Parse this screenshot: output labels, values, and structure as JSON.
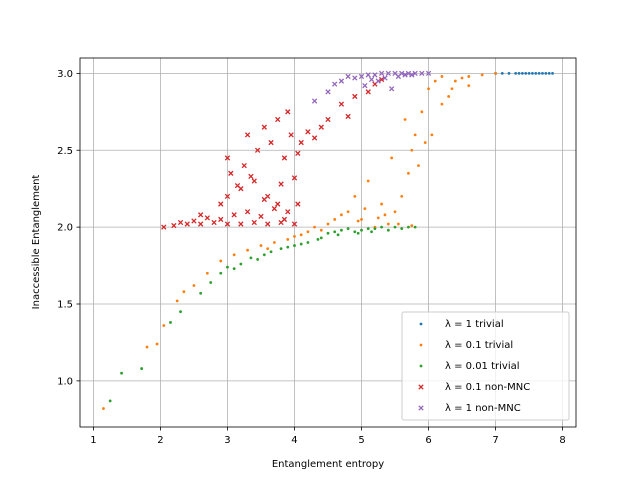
{
  "chart_data": {
    "type": "scatter",
    "title": "",
    "xlabel": "Entanglement entropy",
    "ylabel": "Inaccessible Entanglement",
    "xlim": [
      0.8,
      8.2
    ],
    "ylim": [
      0.7,
      3.1
    ],
    "xticks": [
      1,
      2,
      3,
      4,
      5,
      6,
      7,
      8
    ],
    "yticks": [
      1.0,
      1.5,
      2.0,
      2.5,
      3.0
    ],
    "xtick_labels": [
      "1",
      "2",
      "3",
      "4",
      "5",
      "6",
      "7",
      "8"
    ],
    "ytick_labels": [
      "1.0",
      "1.5",
      "2.0",
      "2.5",
      "3.0"
    ],
    "grid": true,
    "legend_position": "lower-right",
    "series": [
      {
        "name": "λ = 1 trivial",
        "marker": "dot",
        "color": "#1f77b4",
        "points": [
          [
            7.0,
            3.0
          ],
          [
            7.1,
            3.0
          ],
          [
            7.2,
            3.0
          ],
          [
            7.3,
            3.0
          ],
          [
            7.4,
            3.0
          ],
          [
            7.5,
            3.0
          ],
          [
            7.55,
            3.0
          ],
          [
            7.6,
            3.0
          ],
          [
            7.65,
            3.0
          ],
          [
            7.7,
            3.0
          ],
          [
            7.75,
            3.0
          ],
          [
            7.8,
            3.0
          ],
          [
            7.85,
            3.0
          ],
          [
            7.45,
            3.0
          ],
          [
            7.35,
            3.0
          ]
        ]
      },
      {
        "name": "λ = 0.1 trivial",
        "marker": "dot",
        "color": "#ff7f0e",
        "points": [
          [
            1.15,
            0.82
          ],
          [
            1.8,
            1.22
          ],
          [
            1.95,
            1.24
          ],
          [
            2.05,
            1.36
          ],
          [
            2.25,
            1.52
          ],
          [
            2.35,
            1.58
          ],
          [
            2.5,
            1.62
          ],
          [
            2.7,
            1.7
          ],
          [
            2.9,
            1.78
          ],
          [
            3.1,
            1.82
          ],
          [
            3.3,
            1.85
          ],
          [
            3.5,
            1.88
          ],
          [
            3.7,
            1.9
          ],
          [
            3.9,
            1.92
          ],
          [
            4.1,
            1.95
          ],
          [
            4.2,
            1.97
          ],
          [
            4.3,
            2.0
          ],
          [
            4.5,
            2.02
          ],
          [
            4.6,
            2.05
          ],
          [
            4.8,
            2.1
          ],
          [
            5.0,
            2.05
          ],
          [
            5.2,
            2.0
          ],
          [
            5.4,
            2.02
          ],
          [
            5.5,
            2.1
          ],
          [
            5.6,
            2.2
          ],
          [
            5.7,
            2.35
          ],
          [
            5.75,
            2.5
          ],
          [
            5.8,
            2.6
          ],
          [
            5.9,
            2.75
          ],
          [
            6.0,
            2.9
          ],
          [
            6.1,
            2.95
          ],
          [
            6.2,
            2.98
          ],
          [
            6.3,
            2.85
          ],
          [
            6.4,
            2.95
          ],
          [
            6.5,
            2.97
          ],
          [
            6.6,
            2.98
          ],
          [
            6.8,
            2.99
          ],
          [
            7.0,
            3.0
          ],
          [
            4.9,
            2.2
          ],
          [
            5.1,
            2.3
          ],
          [
            5.3,
            2.15
          ],
          [
            5.45,
            2.45
          ],
          [
            5.65,
            2.7
          ],
          [
            5.85,
            2.4
          ],
          [
            5.95,
            2.55
          ],
          [
            6.05,
            2.6
          ],
          [
            6.2,
            2.8
          ],
          [
            6.35,
            2.9
          ],
          [
            4.4,
            1.98
          ],
          [
            4.7,
            2.08
          ],
          [
            5.05,
            2.12
          ],
          [
            5.25,
            2.06
          ],
          [
            5.55,
            2.02
          ],
          [
            5.35,
            2.08
          ],
          [
            4.95,
            2.04
          ],
          [
            5.75,
            2.01
          ],
          [
            3.6,
            1.86
          ],
          [
            4.0,
            1.94
          ],
          [
            6.6,
            2.92
          ]
        ]
      },
      {
        "name": "λ = 0.01 trivial",
        "marker": "dot",
        "color": "#2ca02c",
        "points": [
          [
            1.25,
            0.87
          ],
          [
            1.42,
            1.05
          ],
          [
            1.72,
            1.08
          ],
          [
            2.15,
            1.38
          ],
          [
            2.3,
            1.45
          ],
          [
            2.6,
            1.57
          ],
          [
            2.75,
            1.64
          ],
          [
            3.0,
            1.74
          ],
          [
            3.2,
            1.76
          ],
          [
            3.35,
            1.8
          ],
          [
            3.45,
            1.79
          ],
          [
            3.55,
            1.82
          ],
          [
            3.8,
            1.86
          ],
          [
            4.0,
            1.88
          ],
          [
            4.2,
            1.9
          ],
          [
            4.4,
            1.93
          ],
          [
            4.5,
            1.96
          ],
          [
            4.6,
            1.97
          ],
          [
            4.7,
            1.98
          ],
          [
            4.8,
            1.99
          ],
          [
            4.9,
            1.97
          ],
          [
            5.0,
            1.98
          ],
          [
            5.1,
            1.99
          ],
          [
            5.2,
            1.99
          ],
          [
            5.3,
            2.0
          ],
          [
            5.4,
            1.98
          ],
          [
            5.5,
            2.0
          ],
          [
            5.6,
            1.99
          ],
          [
            5.7,
            2.0
          ],
          [
            5.8,
            2.0
          ],
          [
            4.35,
            1.92
          ],
          [
            4.65,
            1.95
          ],
          [
            4.95,
            1.96
          ],
          [
            5.15,
            1.97
          ],
          [
            3.65,
            1.84
          ],
          [
            3.9,
            1.87
          ],
          [
            4.1,
            1.89
          ],
          [
            2.9,
            1.7
          ],
          [
            3.1,
            1.73
          ]
        ]
      },
      {
        "name": "λ = 0.1 non-MNC",
        "marker": "x",
        "color": "#d62728",
        "points": [
          [
            2.05,
            2.0
          ],
          [
            2.2,
            2.01
          ],
          [
            2.4,
            2.02
          ],
          [
            2.6,
            2.02
          ],
          [
            2.8,
            2.03
          ],
          [
            3.0,
            2.02
          ],
          [
            3.2,
            2.02
          ],
          [
            3.4,
            2.03
          ],
          [
            3.6,
            2.02
          ],
          [
            3.8,
            2.03
          ],
          [
            4.0,
            2.02
          ],
          [
            2.5,
            2.04
          ],
          [
            2.7,
            2.06
          ],
          [
            2.9,
            2.05
          ],
          [
            3.1,
            2.08
          ],
          [
            3.3,
            2.1
          ],
          [
            3.5,
            2.07
          ],
          [
            3.7,
            2.12
          ],
          [
            3.9,
            2.1
          ],
          [
            2.9,
            2.15
          ],
          [
            3.0,
            2.2
          ],
          [
            3.2,
            2.25
          ],
          [
            3.4,
            2.3
          ],
          [
            3.6,
            2.2
          ],
          [
            3.8,
            2.28
          ],
          [
            4.0,
            2.32
          ],
          [
            3.05,
            2.35
          ],
          [
            3.25,
            2.4
          ],
          [
            3.45,
            2.5
          ],
          [
            3.65,
            2.55
          ],
          [
            3.85,
            2.45
          ],
          [
            4.05,
            2.48
          ],
          [
            3.3,
            2.6
          ],
          [
            3.55,
            2.65
          ],
          [
            3.75,
            2.7
          ],
          [
            3.95,
            2.6
          ],
          [
            4.1,
            2.55
          ],
          [
            4.2,
            2.62
          ],
          [
            4.4,
            2.65
          ],
          [
            4.5,
            2.7
          ],
          [
            4.7,
            2.8
          ],
          [
            4.8,
            2.72
          ],
          [
            4.9,
            2.85
          ],
          [
            5.1,
            2.88
          ],
          [
            5.2,
            2.93
          ],
          [
            5.3,
            2.96
          ],
          [
            3.9,
            2.75
          ],
          [
            4.3,
            2.58
          ],
          [
            3.0,
            2.45
          ],
          [
            3.35,
            2.33
          ],
          [
            3.15,
            2.27
          ],
          [
            3.55,
            2.18
          ],
          [
            3.75,
            2.15
          ],
          [
            2.6,
            2.08
          ],
          [
            2.3,
            2.03
          ],
          [
            3.85,
            2.05
          ],
          [
            4.05,
            2.15
          ]
        ]
      },
      {
        "name": "λ = 1 non-MNC",
        "marker": "x",
        "color": "#9467bd",
        "points": [
          [
            4.3,
            2.82
          ],
          [
            4.5,
            2.88
          ],
          [
            4.7,
            2.95
          ],
          [
            4.9,
            2.97
          ],
          [
            5.0,
            2.98
          ],
          [
            5.1,
            2.99
          ],
          [
            5.2,
            2.99
          ],
          [
            5.3,
            3.0
          ],
          [
            5.4,
            3.0
          ],
          [
            5.5,
            3.0
          ],
          [
            5.6,
            3.0
          ],
          [
            5.7,
            3.0
          ],
          [
            5.8,
            3.0
          ],
          [
            5.9,
            3.0
          ],
          [
            6.0,
            3.0
          ],
          [
            4.8,
            2.98
          ],
          [
            5.15,
            2.96
          ],
          [
            5.35,
            2.97
          ],
          [
            5.55,
            2.98
          ],
          [
            5.05,
            2.92
          ],
          [
            5.45,
            2.9
          ],
          [
            4.6,
            2.93
          ],
          [
            5.25,
            2.95
          ],
          [
            5.65,
            2.99
          ],
          [
            5.75,
            2.99
          ]
        ]
      }
    ]
  }
}
